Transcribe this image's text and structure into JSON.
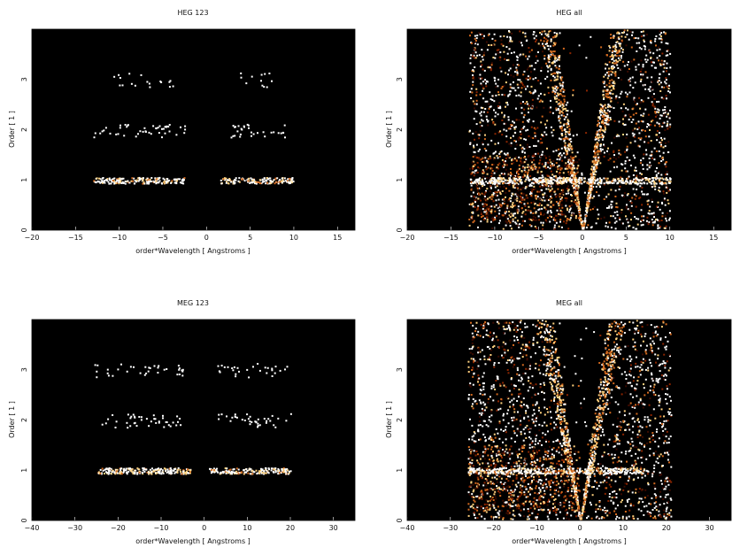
{
  "chart_data": [
    {
      "type": "heatmap",
      "title": "HEG 123",
      "xlabel": "order*Wavelength [ Angstroms ]",
      "ylabel": "Order [ 1 ]",
      "xlim": [
        -20,
        17
      ],
      "ylim": [
        0,
        4
      ],
      "xticks": [
        -20,
        -15,
        -10,
        -5,
        0,
        5,
        10,
        15
      ],
      "xtick_labels": [
        "−20",
        "−15",
        "−10",
        "−5",
        "0",
        "5",
        "10",
        "15"
      ],
      "yticks": [
        0,
        1,
        2,
        3
      ],
      "ytick_labels": [
        "0",
        "1",
        "2",
        "3"
      ],
      "background": "#000000",
      "colormap": [
        "#3a0a00",
        "#8b2500",
        "#d2691e",
        "#ffd27f",
        "#ffffff"
      ],
      "bands": [
        {
          "order": 1,
          "x_range": [
            -13,
            -2.5
          ],
          "density": 0.75
        },
        {
          "order": 1,
          "x_range": [
            1.5,
            10
          ],
          "density": 0.75
        },
        {
          "order": 2,
          "x_range": [
            -13,
            -2.5
          ],
          "density": 0.18
        },
        {
          "order": 2,
          "x_range": [
            2,
            9
          ],
          "density": 0.18
        },
        {
          "order": 3,
          "x_range": [
            -11,
            -3.5
          ],
          "density": 0.1
        },
        {
          "order": 3,
          "x_range": [
            3,
            8
          ],
          "density": 0.1
        }
      ],
      "diffuse": false
    },
    {
      "type": "heatmap",
      "title": "HEG all",
      "xlabel": "order*Wavelength [ Angstroms ]",
      "ylabel": "Order [ 1 ]",
      "xlim": [
        -20,
        17
      ],
      "ylim": [
        0,
        4
      ],
      "xticks": [
        -20,
        -15,
        -10,
        -5,
        0,
        5,
        10,
        15
      ],
      "xtick_labels": [
        "−20",
        "−15",
        "−10",
        "−5",
        "0",
        "5",
        "10",
        "15"
      ],
      "yticks": [
        0,
        1,
        2,
        3
      ],
      "ytick_labels": [
        "0",
        "1",
        "2",
        "3"
      ],
      "background": "#000000",
      "colormap": [
        "#3a0a00",
        "#8b2500",
        "#d2691e",
        "#ffd27f",
        "#ffffff"
      ],
      "bands": [
        {
          "order": 1,
          "x_range": [
            -13,
            10
          ],
          "density": 0.8
        }
      ],
      "diffuse": true,
      "region_x": [
        -13,
        10
      ]
    },
    {
      "type": "heatmap",
      "title": "MEG 123",
      "xlabel": "order*Wavelength [ Angstroms ]",
      "ylabel": "Order [ 1 ]",
      "xlim": [
        -40,
        35
      ],
      "ylim": [
        0,
        4
      ],
      "xticks": [
        -40,
        -30,
        -20,
        -10,
        0,
        10,
        20,
        30
      ],
      "xtick_labels": [
        "−40",
        "−30",
        "−20",
        "−10",
        "0",
        "10",
        "20",
        "30"
      ],
      "yticks": [
        0,
        1,
        2,
        3
      ],
      "ytick_labels": [
        "0",
        "1",
        "2",
        "3"
      ],
      "background": "#000000",
      "colormap": [
        "#3a0a00",
        "#8b2500",
        "#d2691e",
        "#ffd27f",
        "#ffffff"
      ],
      "bands": [
        {
          "order": 1,
          "x_range": [
            -25,
            -3
          ],
          "density": 0.8
        },
        {
          "order": 1,
          "x_range": [
            1,
            20
          ],
          "density": 0.8
        },
        {
          "order": 2,
          "x_range": [
            -25,
            -5
          ],
          "density": 0.18
        },
        {
          "order": 2,
          "x_range": [
            3,
            20
          ],
          "density": 0.18
        },
        {
          "order": 3,
          "x_range": [
            -26,
            -5
          ],
          "density": 0.14
        },
        {
          "order": 3,
          "x_range": [
            3,
            20
          ],
          "density": 0.14
        }
      ],
      "diffuse": false
    },
    {
      "type": "heatmap",
      "title": "MEG all",
      "xlabel": "order*Wavelength [ Angstroms ]",
      "ylabel": "Order [ 1 ]",
      "xlim": [
        -40,
        35
      ],
      "ylim": [
        0,
        4
      ],
      "xticks": [
        -40,
        -30,
        -20,
        -10,
        0,
        10,
        20,
        30
      ],
      "xtick_labels": [
        "−40",
        "−30",
        "−20",
        "−10",
        "0",
        "10",
        "20",
        "30"
      ],
      "yticks": [
        0,
        1,
        2,
        3
      ],
      "ytick_labels": [
        "0",
        "1",
        "2",
        "3"
      ],
      "background": "#000000",
      "colormap": [
        "#3a0a00",
        "#8b2500",
        "#d2691e",
        "#ffd27f",
        "#ffffff"
      ],
      "bands": [
        {
          "order": 1,
          "x_range": [
            -26,
            15
          ],
          "density": 0.8
        }
      ],
      "diffuse": true,
      "region_x": [
        -26,
        21
      ]
    }
  ]
}
